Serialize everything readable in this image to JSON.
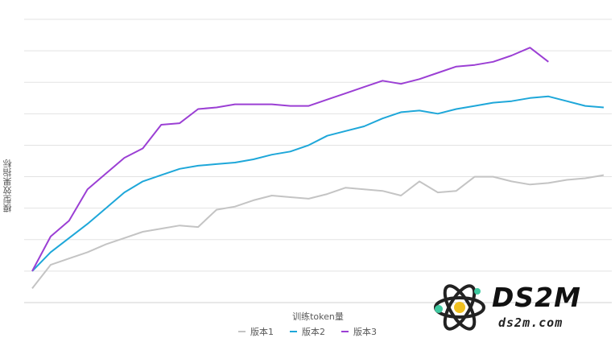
{
  "chart_data": {
    "type": "line",
    "ylabel": "模型效果指标",
    "xlabel": "训练token量",
    "legend_position": "bottom",
    "grid": "horizontal",
    "ylim": [
      0,
      9
    ],
    "x": [
      1,
      2,
      3,
      4,
      5,
      6,
      7,
      8,
      9,
      10,
      11,
      12,
      13,
      14,
      15,
      16,
      17,
      18,
      19,
      20,
      21,
      22,
      23,
      24,
      25,
      26,
      27,
      28,
      29,
      30,
      31,
      32
    ],
    "series": [
      {
        "name": "版本1",
        "color": "#c4c4c4",
        "values": [
          0.45,
          1.2,
          1.4,
          1.6,
          1.85,
          2.05,
          2.25,
          2.35,
          2.45,
          2.4,
          2.95,
          3.05,
          3.25,
          3.4,
          3.35,
          3.3,
          3.45,
          3.65,
          3.6,
          3.55,
          3.4,
          3.85,
          3.5,
          3.55,
          4.0,
          4.0,
          3.85,
          3.75,
          3.8,
          3.9,
          3.95,
          4.05
        ]
      },
      {
        "name": "版本2",
        "color": "#1ea7d9",
        "values": [
          1.0,
          1.6,
          2.05,
          2.5,
          3.0,
          3.5,
          3.85,
          4.05,
          4.25,
          4.35,
          4.4,
          4.45,
          4.55,
          4.7,
          4.8,
          5.0,
          5.3,
          5.45,
          5.6,
          5.85,
          6.05,
          6.1,
          6.0,
          6.15,
          6.25,
          6.35,
          6.4,
          6.5,
          6.55,
          6.4,
          6.25,
          6.2
        ]
      }
    ]
  },
  "watermark": {
    "brand": "DS2M",
    "site": "ds2m.com"
  }
}
